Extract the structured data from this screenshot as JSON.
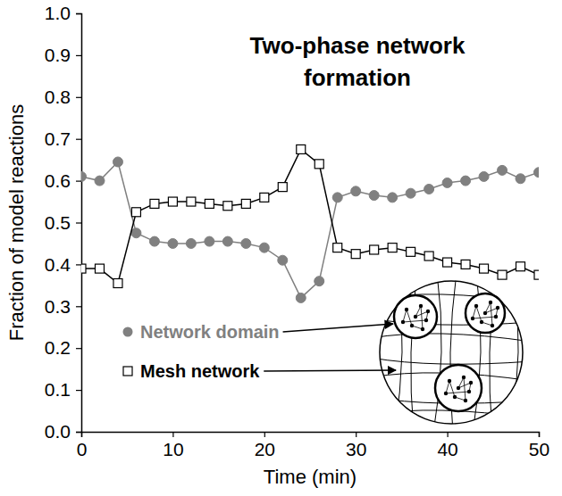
{
  "chart_data": {
    "type": "line",
    "title": "Two-phase network formation",
    "x_label": "Time (min)",
    "y_label": "Fraction of model reactions",
    "x": [
      0,
      2,
      4,
      6,
      8,
      10,
      12,
      14,
      16,
      18,
      20,
      22,
      24,
      26,
      28,
      30,
      32,
      34,
      36,
      38,
      40,
      42,
      44,
      46,
      48,
      50
    ],
    "series": [
      {
        "name": "Network domain",
        "color": "#808080",
        "marker": "circle",
        "line_style": "solid",
        "values": [
          0.61,
          0.6,
          0.645,
          0.475,
          0.455,
          0.45,
          0.45,
          0.455,
          0.455,
          0.45,
          0.44,
          0.41,
          0.32,
          0.36,
          0.56,
          0.575,
          0.565,
          0.56,
          0.57,
          0.58,
          0.595,
          0.6,
          0.61,
          0.625,
          0.605,
          0.62
        ]
      },
      {
        "name": "Mesh network",
        "color": "#000000",
        "marker": "square",
        "line_style": "solid",
        "values": [
          0.39,
          0.39,
          0.355,
          0.525,
          0.545,
          0.55,
          0.55,
          0.545,
          0.54,
          0.545,
          0.56,
          0.585,
          0.675,
          0.64,
          0.44,
          0.425,
          0.435,
          0.44,
          0.43,
          0.42,
          0.405,
          0.4,
          0.39,
          0.375,
          0.395,
          0.375
        ]
      }
    ],
    "xlim": [
      0,
      50
    ],
    "xticks": [
      0,
      10,
      20,
      30,
      40,
      50
    ],
    "ylim": [
      0,
      1
    ],
    "yticks": [
      {
        "value": 0,
        "label": "0.0"
      },
      0.1,
      0.2,
      0.3,
      0.4,
      0.5,
      0.6,
      0.7,
      0.8,
      0.9,
      {
        "value": 1,
        "label": "1.0"
      }
    ],
    "grid": false,
    "legend": "lower right"
  }
}
